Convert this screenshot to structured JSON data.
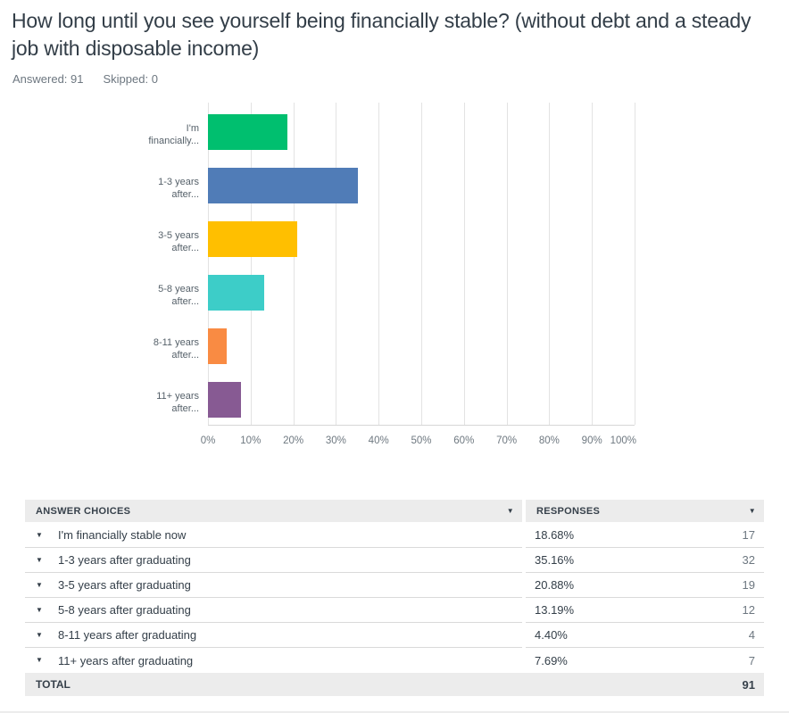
{
  "page": {
    "title": "How long until you see yourself being financially stable? (without debt and a steady job with disposable income)",
    "answered": "Answered: 91",
    "skipped": "Skipped: 0"
  },
  "icons": {
    "caret_down": "▼"
  },
  "chart_data": {
    "type": "bar",
    "orientation": "horizontal",
    "title": "",
    "xlabel": "",
    "ylabel": "",
    "xlim": [
      0,
      100
    ],
    "grid": "vertical",
    "categories": [
      "I'm financially stable now",
      "1-3 years after graduating",
      "3-5 years after graduating",
      "5-8 years after graduating",
      "8-11 years after graduating",
      "11+ years after graduating"
    ],
    "label_lines": [
      [
        "I'm",
        "financially..."
      ],
      [
        "1-3 years",
        "after..."
      ],
      [
        "3-5 years",
        "after..."
      ],
      [
        "5-8 years",
        "after..."
      ],
      [
        "8-11 years",
        "after..."
      ],
      [
        "11+ years",
        "after..."
      ]
    ],
    "values": [
      18.68,
      35.16,
      20.88,
      13.19,
      4.4,
      7.69
    ],
    "colors": [
      "#00BF6F",
      "#507CB7",
      "#FFBF00",
      "#3DCDC8",
      "#F98B43",
      "#875A93"
    ],
    "x_ticks": [
      "0%",
      "10%",
      "20%",
      "30%",
      "40%",
      "50%",
      "60%",
      "70%",
      "80%",
      "90%",
      "100%"
    ]
  },
  "table": {
    "headers": [
      {
        "label": "ANSWER CHOICES"
      },
      {
        "label": "RESPONSES"
      }
    ],
    "rows": [
      {
        "choice": "I'm financially stable now",
        "percent": "18.68%",
        "count": "17"
      },
      {
        "choice": "1-3 years after graduating",
        "percent": "35.16%",
        "count": "32"
      },
      {
        "choice": "3-5 years after graduating",
        "percent": "20.88%",
        "count": "19"
      },
      {
        "choice": "5-8 years after graduating",
        "percent": "13.19%",
        "count": "12"
      },
      {
        "choice": "8-11 years after graduating",
        "percent": "4.40%",
        "count": "4"
      },
      {
        "choice": "11+ years after graduating",
        "percent": "7.69%",
        "count": "7"
      }
    ],
    "total": {
      "label": "TOTAL",
      "count": "91"
    }
  }
}
